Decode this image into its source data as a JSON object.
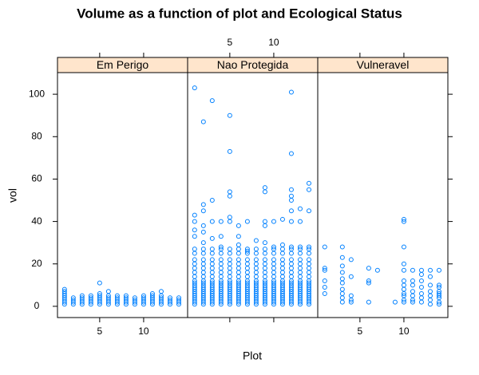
{
  "title": "Volume as a function of plot and Ecological Status",
  "x_label": "Plot",
  "y_label": "vol",
  "chart_data": [
    {
      "type": "scatter",
      "strip": "Em Perigo",
      "color": "#0080ff",
      "xaxis": "bottom",
      "yaxis": "left",
      "xlim": [
        0.2,
        15
      ],
      "ylim": [
        -5.3,
        110.2
      ],
      "xticks": [
        5,
        10
      ],
      "yticks": [
        0,
        20,
        40,
        60,
        80,
        100
      ],
      "x": [
        1,
        1,
        1,
        1,
        1,
        1,
        1,
        1,
        2,
        2,
        2,
        2,
        3,
        3,
        3,
        3,
        3,
        4,
        4,
        4,
        4,
        4,
        5,
        5,
        5,
        5,
        5,
        5,
        5,
        6,
        6,
        6,
        6,
        6,
        6,
        7,
        7,
        7,
        7,
        7,
        8,
        8,
        8,
        8,
        8,
        9,
        9,
        9,
        9,
        10,
        10,
        10,
        10,
        10,
        11,
        11,
        11,
        11,
        11,
        11,
        12,
        12,
        12,
        12,
        12,
        12,
        13,
        13,
        13,
        13,
        14,
        14,
        14,
        14
      ],
      "values": [
        1,
        2,
        3,
        4,
        5,
        6,
        7,
        8,
        1,
        2,
        3,
        4,
        1,
        2,
        3,
        4,
        5,
        1,
        2,
        3,
        4,
        5,
        1,
        2,
        3,
        4,
        5,
        6,
        11,
        1,
        2,
        3,
        4,
        5,
        7,
        1,
        2,
        3,
        4,
        5,
        1,
        2,
        3,
        4,
        5,
        1,
        2,
        3,
        4,
        1,
        2,
        3,
        4,
        5,
        1,
        2,
        3,
        4,
        5,
        6,
        1,
        2,
        3,
        4,
        5,
        7,
        1,
        2,
        3,
        4,
        1,
        2,
        3,
        4
      ]
    },
    {
      "type": "scatter",
      "strip": "Nao Protegida",
      "color": "#0080ff",
      "xaxis": "top",
      "yaxis": "none",
      "xlim": [
        0.2,
        15
      ],
      "ylim": [
        -5.3,
        110.2
      ],
      "xticks": [
        5,
        10
      ],
      "yticks": [
        0,
        20,
        40,
        60,
        80,
        100
      ],
      "x": [
        1,
        1,
        1,
        1,
        1,
        1,
        1,
        1,
        1,
        1,
        1,
        1,
        1,
        1,
        1,
        1,
        1,
        1,
        1,
        1,
        1,
        1,
        1,
        1,
        2,
        2,
        2,
        2,
        2,
        2,
        2,
        2,
        2,
        2,
        2,
        2,
        2,
        2,
        2,
        2,
        2,
        2,
        2,
        2,
        2,
        2,
        2,
        2,
        2,
        3,
        3,
        3,
        3,
        3,
        3,
        3,
        3,
        3,
        3,
        3,
        3,
        3,
        3,
        3,
        3,
        3,
        3,
        3,
        3,
        3,
        3,
        3,
        4,
        4,
        4,
        4,
        4,
        4,
        4,
        4,
        4,
        4,
        4,
        4,
        4,
        4,
        4,
        4,
        4,
        4,
        4,
        4,
        4,
        4,
        5,
        5,
        5,
        5,
        5,
        5,
        5,
        5,
        5,
        5,
        5,
        5,
        5,
        5,
        5,
        5,
        5,
        5,
        5,
        5,
        5,
        5,
        5,
        5,
        5,
        6,
        6,
        6,
        6,
        6,
        6,
        6,
        6,
        6,
        6,
        6,
        6,
        6,
        6,
        6,
        6,
        6,
        6,
        6,
        6,
        6,
        6,
        7,
        7,
        7,
        7,
        7,
        7,
        7,
        7,
        7,
        7,
        7,
        7,
        7,
        7,
        7,
        7,
        7,
        7,
        7,
        7,
        7,
        8,
        8,
        8,
        8,
        8,
        8,
        8,
        8,
        8,
        8,
        8,
        8,
        8,
        8,
        8,
        8,
        8,
        8,
        8,
        8,
        9,
        9,
        9,
        9,
        9,
        9,
        9,
        9,
        9,
        9,
        9,
        9,
        9,
        9,
        9,
        9,
        9,
        9,
        9,
        9,
        9,
        9,
        9,
        9,
        10,
        10,
        10,
        10,
        10,
        10,
        10,
        10,
        10,
        10,
        10,
        10,
        10,
        10,
        10,
        10,
        10,
        10,
        10,
        10,
        10,
        11,
        11,
        11,
        11,
        11,
        11,
        11,
        11,
        11,
        11,
        11,
        11,
        11,
        11,
        11,
        11,
        11,
        11,
        11,
        11,
        11,
        12,
        12,
        12,
        12,
        12,
        12,
        12,
        12,
        12,
        12,
        12,
        12,
        12,
        12,
        12,
        12,
        12,
        12,
        12,
        12,
        12,
        12,
        12,
        12,
        12,
        12,
        12,
        13,
        13,
        13,
        13,
        13,
        13,
        13,
        13,
        13,
        13,
        13,
        13,
        13,
        13,
        13,
        13,
        13,
        13,
        13,
        13,
        13,
        13,
        14,
        14,
        14,
        14,
        14,
        14,
        14,
        14,
        14,
        14,
        14,
        14,
        14,
        14,
        14,
        14,
        14,
        14,
        14,
        14,
        14,
        14,
        14
      ],
      "values": [
        1,
        2,
        3,
        4,
        5,
        6,
        7,
        8,
        9,
        10,
        11,
        12,
        14,
        16,
        18,
        20,
        22,
        25,
        27,
        33,
        36,
        40,
        43,
        103,
        1,
        2,
        3,
        4,
        5,
        6,
        7,
        8,
        9,
        10,
        11,
        12,
        14,
        16,
        18,
        20,
        22,
        25,
        27,
        30,
        35,
        38,
        45,
        48,
        87,
        1,
        2,
        3,
        4,
        5,
        6,
        7,
        8,
        9,
        10,
        11,
        12,
        14,
        16,
        18,
        20,
        22,
        25,
        27,
        32,
        40,
        50,
        97,
        1,
        2,
        3,
        4,
        5,
        6,
        7,
        8,
        9,
        10,
        11,
        12,
        14,
        16,
        18,
        20,
        22,
        25,
        27,
        28,
        33,
        40,
        1,
        2,
        3,
        4,
        5,
        6,
        7,
        8,
        9,
        10,
        11,
        12,
        14,
        16,
        18,
        20,
        22,
        25,
        27,
        40,
        42,
        52,
        54,
        73,
        90,
        1,
        2,
        3,
        4,
        5,
        6,
        7,
        8,
        9,
        10,
        11,
        12,
        14,
        16,
        18,
        20,
        22,
        25,
        27,
        29,
        33,
        38,
        1,
        2,
        3,
        4,
        5,
        6,
        7,
        8,
        9,
        10,
        11,
        12,
        14,
        16,
        18,
        20,
        22,
        25,
        27,
        26,
        40,
        1,
        2,
        3,
        4,
        5,
        6,
        7,
        8,
        9,
        10,
        11,
        12,
        14,
        16,
        18,
        20,
        22,
        25,
        27,
        31,
        1,
        2,
        3,
        4,
        5,
        6,
        7,
        8,
        9,
        10,
        11,
        12,
        14,
        16,
        18,
        20,
        22,
        25,
        27,
        30,
        38,
        40,
        54,
        56,
        1,
        2,
        3,
        4,
        5,
        6,
        7,
        8,
        9,
        10,
        11,
        12,
        14,
        16,
        18,
        20,
        22,
        25,
        27,
        28,
        40,
        1,
        2,
        3,
        4,
        5,
        6,
        7,
        8,
        9,
        10,
        11,
        12,
        14,
        16,
        18,
        20,
        22,
        25,
        27,
        29,
        41,
        1,
        2,
        3,
        4,
        5,
        6,
        7,
        8,
        9,
        10,
        11,
        12,
        14,
        16,
        18,
        20,
        22,
        25,
        27,
        28,
        40,
        45,
        50,
        52,
        55,
        72,
        101,
        1,
        2,
        3,
        4,
        5,
        6,
        7,
        8,
        9,
        10,
        11,
        12,
        14,
        16,
        18,
        20,
        22,
        25,
        27,
        28,
        40,
        46,
        1,
        2,
        3,
        4,
        5,
        6,
        7,
        8,
        9,
        10,
        11,
        12,
        14,
        16,
        18,
        20,
        22,
        25,
        27,
        28,
        45,
        55,
        58
      ]
    },
    {
      "type": "scatter",
      "strip": "Vulneravel",
      "color": "#0080ff",
      "xaxis": "bottom",
      "yaxis": "right",
      "xlim": [
        0.2,
        15
      ],
      "ylim": [
        -5.3,
        110.2
      ],
      "xticks": [
        5,
        10
      ],
      "yticks": [
        0,
        20,
        40,
        60,
        80,
        100
      ],
      "x": [
        1,
        1,
        1,
        1,
        1,
        1,
        3,
        3,
        3,
        3,
        3,
        3,
        3,
        3,
        3,
        3,
        4,
        4,
        4,
        4,
        4,
        6,
        6,
        6,
        6,
        7,
        9,
        10,
        10,
        10,
        10,
        10,
        10,
        10,
        10,
        10,
        10,
        10,
        10,
        11,
        11,
        11,
        11,
        11,
        11,
        11,
        12,
        12,
        12,
        12,
        12,
        12,
        12,
        13,
        13,
        13,
        13,
        13,
        13,
        13,
        14,
        14,
        14,
        14,
        14,
        14,
        14,
        14,
        14
      ],
      "values": [
        6,
        9,
        12,
        17,
        18,
        28,
        2,
        4,
        6,
        8,
        11,
        13,
        16,
        19,
        23,
        28,
        2,
        3,
        5,
        14,
        22,
        2,
        11,
        12,
        18,
        17,
        2,
        2,
        3,
        5,
        6,
        8,
        10,
        12,
        17,
        20,
        28,
        40,
        41,
        2,
        3,
        5,
        7,
        10,
        12,
        17,
        2,
        4,
        6,
        9,
        12,
        15,
        17,
        1,
        3,
        5,
        7,
        10,
        14,
        17,
        1,
        2,
        4,
        5,
        6,
        7,
        9,
        10,
        17
      ]
    }
  ]
}
